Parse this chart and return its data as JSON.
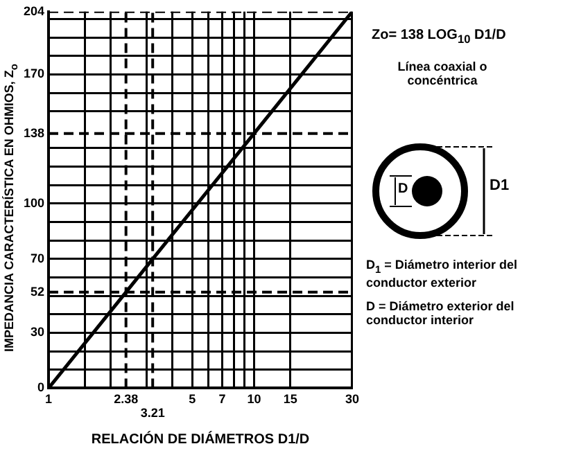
{
  "chart_data": {
    "type": "line",
    "xlabel": "RELACIÓN DE DIÁMETROS D1/D",
    "ylabel": "IMPEDANCIA CARACTERÍSTICA EN OHMIOS, Z$_{o}$",
    "x": [
      1,
      2.38,
      3.21,
      10,
      30
    ],
    "series": [
      {
        "color": "#000000",
        "values": [
          0,
          52,
          70,
          138,
          204
        ]
      }
    ],
    "log": "x",
    "xlim": [
      1,
      30
    ],
    "xticks": [
      1,
      {
        "value": 1.5,
        "label": null
      },
      {
        "value": 2,
        "label": null
      },
      {
        "value": 3,
        "label": null
      },
      {
        "value": 4,
        "label": null
      },
      5,
      {
        "value": 6,
        "label": null
      },
      7,
      {
        "value": 8,
        "label": null
      },
      {
        "value": 9,
        "label": null
      },
      10,
      15,
      30
    ],
    "ylim": [
      0,
      204
    ],
    "yticks": [
      0,
      {
        "value": 10,
        "label": null
      },
      {
        "value": 20,
        "label": null
      },
      30,
      {
        "value": 40,
        "label": null
      },
      {
        "value": 50,
        "label": null
      },
      {
        "value": 60,
        "label": null
      },
      70,
      {
        "value": 80,
        "label": null
      },
      {
        "value": 90,
        "label": null
      },
      100,
      {
        "value": 110,
        "label": null
      },
      {
        "value": 120,
        "label": null
      },
      {
        "value": 130,
        "label": null
      },
      {
        "value": 150,
        "label": null
      },
      {
        "value": 160,
        "label": null
      },
      170,
      {
        "value": 180,
        "label": null
      },
      {
        "value": 190,
        "label": null
      },
      {
        "value": 200,
        "label": null
      }
    ],
    "grid": true,
    "marker": "none",
    "line_style": "solid",
    "ref_lines": [
      {
        "axis": "y",
        "value": 204,
        "label": "204",
        "line_style": "dashed"
      },
      {
        "axis": "y",
        "value": 138,
        "label": "138",
        "line_style": "dashed"
      },
      {
        "axis": "y",
        "value": 52,
        "label": "52",
        "line_style": "dashed"
      },
      {
        "axis": "x",
        "value": 2.38,
        "label": "2.38",
        "line_style": "dashed"
      },
      {
        "axis": "x",
        "value": 3.21,
        "label": "3.21",
        "line_style": "dashed"
      }
    ],
    "annotations": [
      "Zo= 138 LOG$_{10}$ D1/D",
      "Línea coaxial o concéntrica",
      "D1",
      "D",
      "D$_{1}$ = Diámetro interior del conductor exterior",
      "D = Diámetro exterior del conductor interior"
    ]
  }
}
